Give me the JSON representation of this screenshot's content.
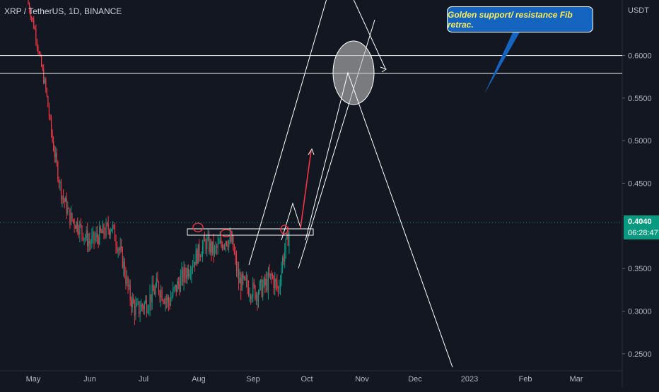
{
  "symbol": "XRP / TetherUS, 1D, BINANCE",
  "currency": "USDT",
  "callout_text": "Golden support/ resistance Fib retrac.",
  "current_price": "0.4040",
  "countdown": "06:28:47",
  "colors": {
    "background": "#131722",
    "up": "#089981",
    "down": "#f23645",
    "drawing": "#ffffff",
    "callout": "#1565c0",
    "callout_text": "#ffee58"
  },
  "chart_data": {
    "type": "candlestick",
    "y_ticks": [
      "0.6000",
      "0.5500",
      "0.5000",
      "0.4500",
      "0.3500",
      "0.3000",
      "0.2500"
    ],
    "ylim": [
      0.23,
      0.665
    ],
    "x_ticks": [
      "May",
      "Jun",
      "Jul",
      "Aug",
      "Sep",
      "Oct",
      "Nov",
      "Dec",
      "2023",
      "Feb",
      "Mar"
    ],
    "horizontal_levels": [
      0.5999,
      0.5789
    ],
    "price_path": [
      [
        0,
        0.66
      ],
      [
        6,
        0.63
      ],
      [
        10,
        0.6
      ],
      [
        16,
        0.56
      ],
      [
        22,
        0.5
      ],
      [
        30,
        0.44
      ],
      [
        38,
        0.41
      ],
      [
        46,
        0.4
      ],
      [
        56,
        0.38
      ],
      [
        66,
        0.39
      ],
      [
        76,
        0.4
      ],
      [
        86,
        0.36
      ],
      [
        92,
        0.32
      ],
      [
        98,
        0.3
      ],
      [
        108,
        0.31
      ],
      [
        118,
        0.33
      ],
      [
        128,
        0.31
      ],
      [
        136,
        0.33
      ],
      [
        146,
        0.35
      ],
      [
        156,
        0.37
      ],
      [
        162,
        0.38
      ],
      [
        170,
        0.37
      ],
      [
        180,
        0.385
      ],
      [
        186,
        0.38
      ],
      [
        192,
        0.335
      ],
      [
        198,
        0.33
      ],
      [
        208,
        0.322
      ],
      [
        216,
        0.33
      ],
      [
        222,
        0.34
      ],
      [
        228,
        0.325
      ],
      [
        232,
        0.36
      ],
      [
        238,
        0.392
      ],
      [
        240,
        0.404
      ]
    ]
  }
}
